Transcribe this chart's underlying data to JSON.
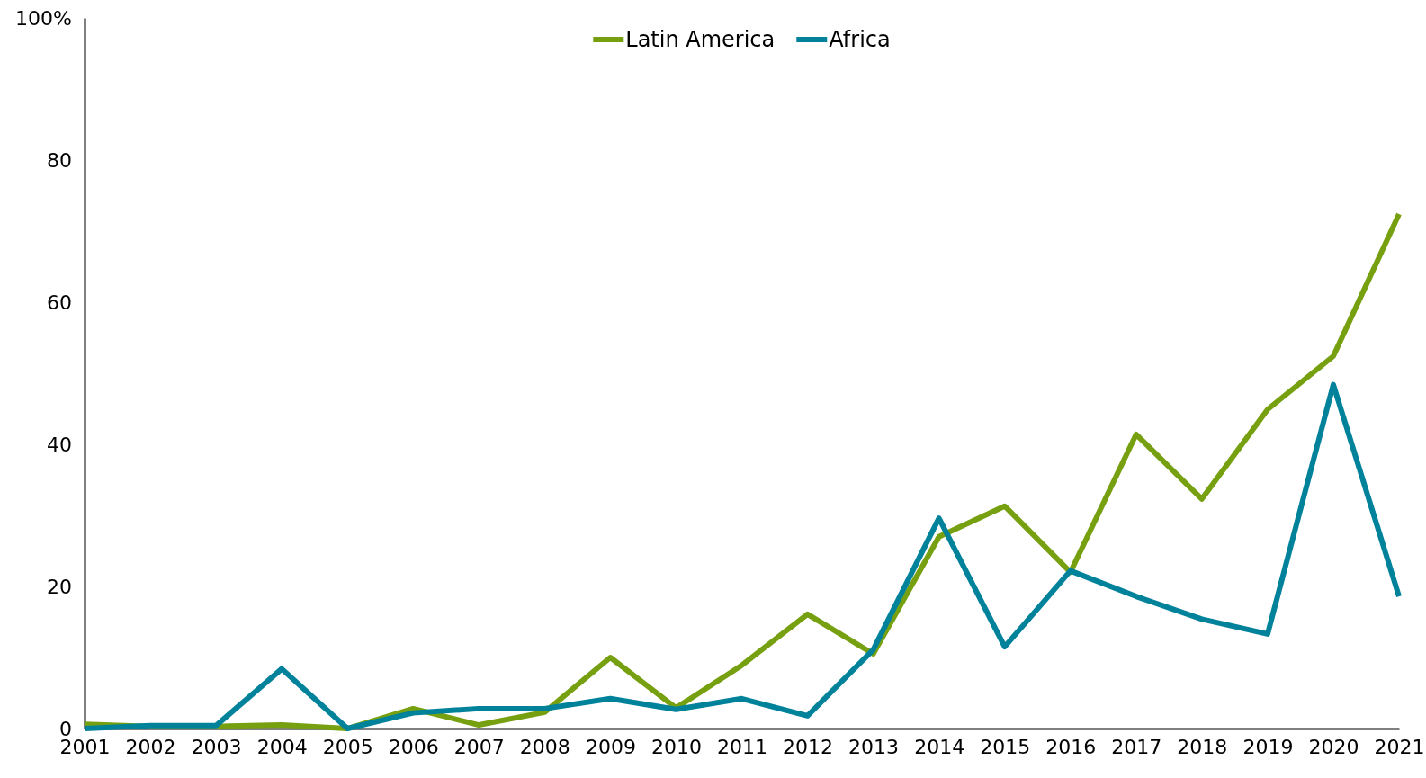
{
  "chart_data": {
    "type": "line",
    "x": [
      2001,
      2002,
      2003,
      2004,
      2005,
      2006,
      2007,
      2008,
      2009,
      2010,
      2011,
      2012,
      2013,
      2014,
      2015,
      2016,
      2017,
      2018,
      2019,
      2020,
      2021
    ],
    "xlim": [
      2001,
      2021
    ],
    "xticks": [
      2001,
      2002,
      2003,
      2004,
      2005,
      2006,
      2007,
      2008,
      2009,
      2010,
      2011,
      2012,
      2013,
      2014,
      2015,
      2016,
      2017,
      2018,
      2019,
      2020,
      2021
    ],
    "ylim": [
      0,
      100
    ],
    "yticks": [
      0,
      20,
      40,
      60,
      80,
      {
        "value": 100,
        "label": "100%"
      }
    ],
    "grid": false,
    "legend": "top",
    "marker": "none",
    "line_style": "solid",
    "series": [
      {
        "name": "Latin America",
        "color": "#76a010",
        "values": [
          0.6,
          0.3,
          0.3,
          0.5,
          0,
          2.8,
          0.5,
          2.3,
          10,
          2.9,
          8.9,
          16.1,
          10.5,
          27,
          31.3,
          22,
          41.4,
          32.3,
          44.9,
          52.4,
          72.4
        ]
      },
      {
        "name": "Africa",
        "color": "#00829b",
        "values": [
          0,
          0.4,
          0.4,
          8.4,
          0,
          2.2,
          2.8,
          2.8,
          4.2,
          2.7,
          4.2,
          1.8,
          11.1,
          29.6,
          11.5,
          22.2,
          18.6,
          15.4,
          13.3,
          48.4,
          18.6
        ]
      }
    ]
  }
}
